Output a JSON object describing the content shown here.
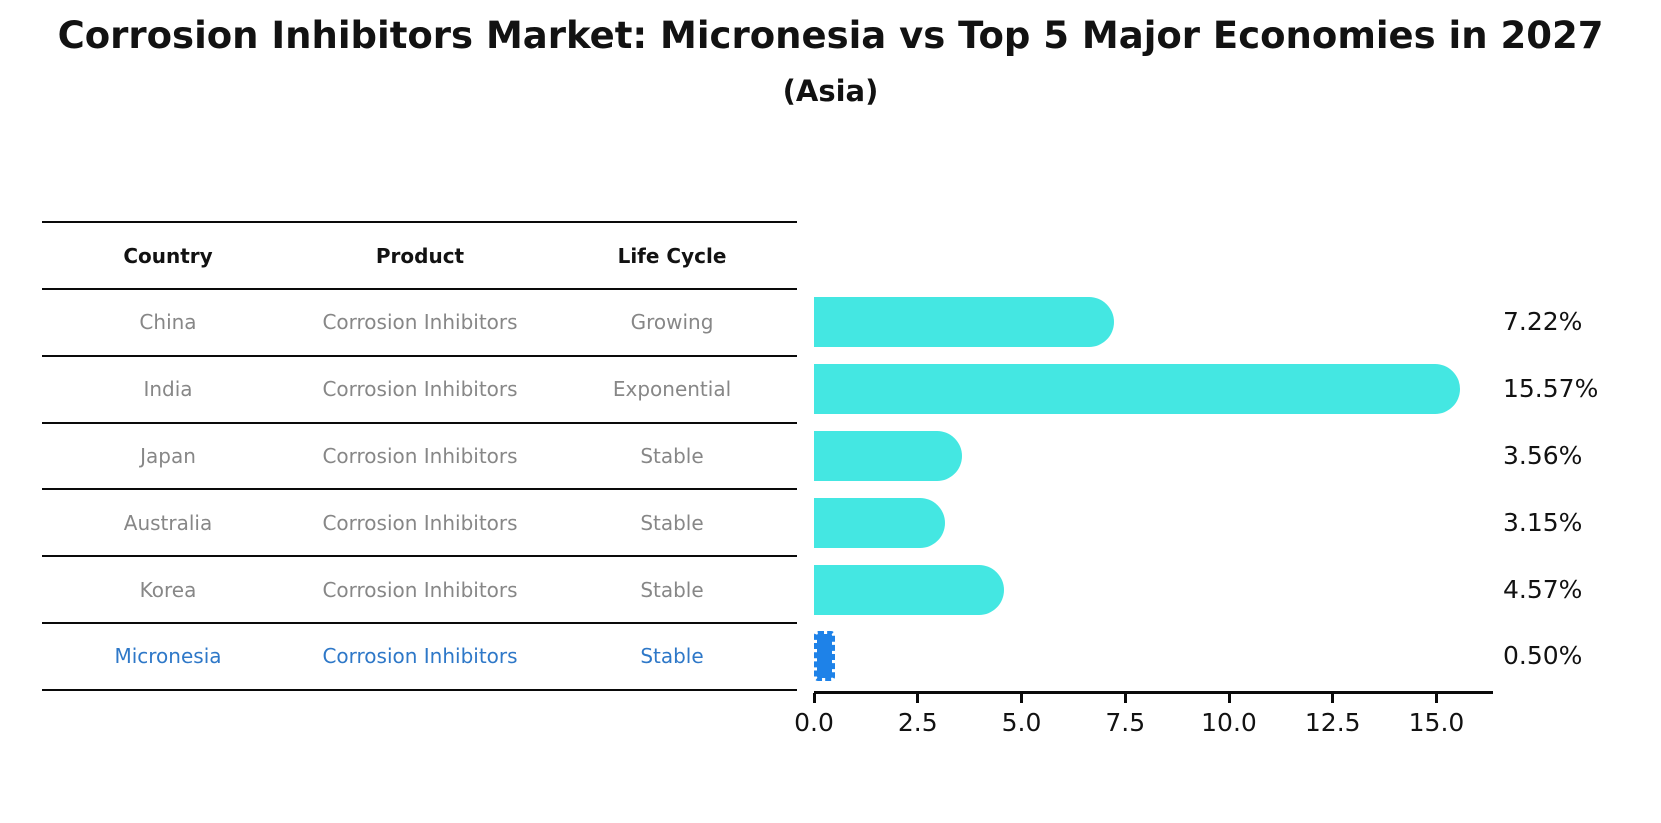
{
  "title": "Corrosion Inhibitors Market: Micronesia vs Top 5 Major Economies in 2027",
  "subtitle": "(Asia)",
  "table": {
    "headers": [
      "Country",
      "Product",
      "Life Cycle"
    ],
    "rows": [
      {
        "country": "China",
        "product": "Corrosion Inhibitors",
        "life_cycle": "Growing",
        "highlighted": false
      },
      {
        "country": "India",
        "product": "Corrosion Inhibitors",
        "life_cycle": "Exponential",
        "highlighted": false
      },
      {
        "country": "Japan",
        "product": "Corrosion Inhibitors",
        "life_cycle": "Stable",
        "highlighted": false
      },
      {
        "country": "Australia",
        "product": "Corrosion Inhibitors",
        "life_cycle": "Stable",
        "highlighted": false
      },
      {
        "country": "Korea",
        "product": "Corrosion Inhibitors",
        "life_cycle": "Stable",
        "highlighted": false
      },
      {
        "country": "Micronesia",
        "product": "Corrosion Inhibitors",
        "life_cycle": "Stable",
        "highlighted": true
      }
    ]
  },
  "chart_data": {
    "type": "bar",
    "orientation": "horizontal",
    "title": "Corrosion Inhibitors Market: Micronesia vs Top 5 Major Economies in 2027",
    "subtitle": "(Asia)",
    "categories": [
      "China",
      "India",
      "Japan",
      "Australia",
      "Korea",
      "Micronesia"
    ],
    "values": [
      7.22,
      15.57,
      3.56,
      3.15,
      4.57,
      0.5
    ],
    "value_labels": [
      "7.22%",
      "15.57%",
      "3.56%",
      "3.15%",
      "4.57%",
      "0.50%"
    ],
    "highlight_index": 5,
    "x_tick_labels": [
      "0.0",
      "2.5",
      "5.0",
      "7.5",
      "10.0",
      "12.5",
      "15.0"
    ],
    "x_tick_values": [
      0.0,
      2.5,
      5.0,
      7.5,
      10.0,
      12.5,
      15.0
    ],
    "xlim": [
      0,
      16.36
    ],
    "grid": false,
    "legend": null,
    "xlabel": "",
    "ylabel": ""
  },
  "colors": {
    "bar_default": "#44e7e2",
    "bar_highlight": "#1e82e8",
    "highlight_text": "#2e78c8",
    "table_text": "#878787",
    "heading_text": "#121212",
    "line": "#0a0a0a",
    "background": "#ffffff"
  }
}
